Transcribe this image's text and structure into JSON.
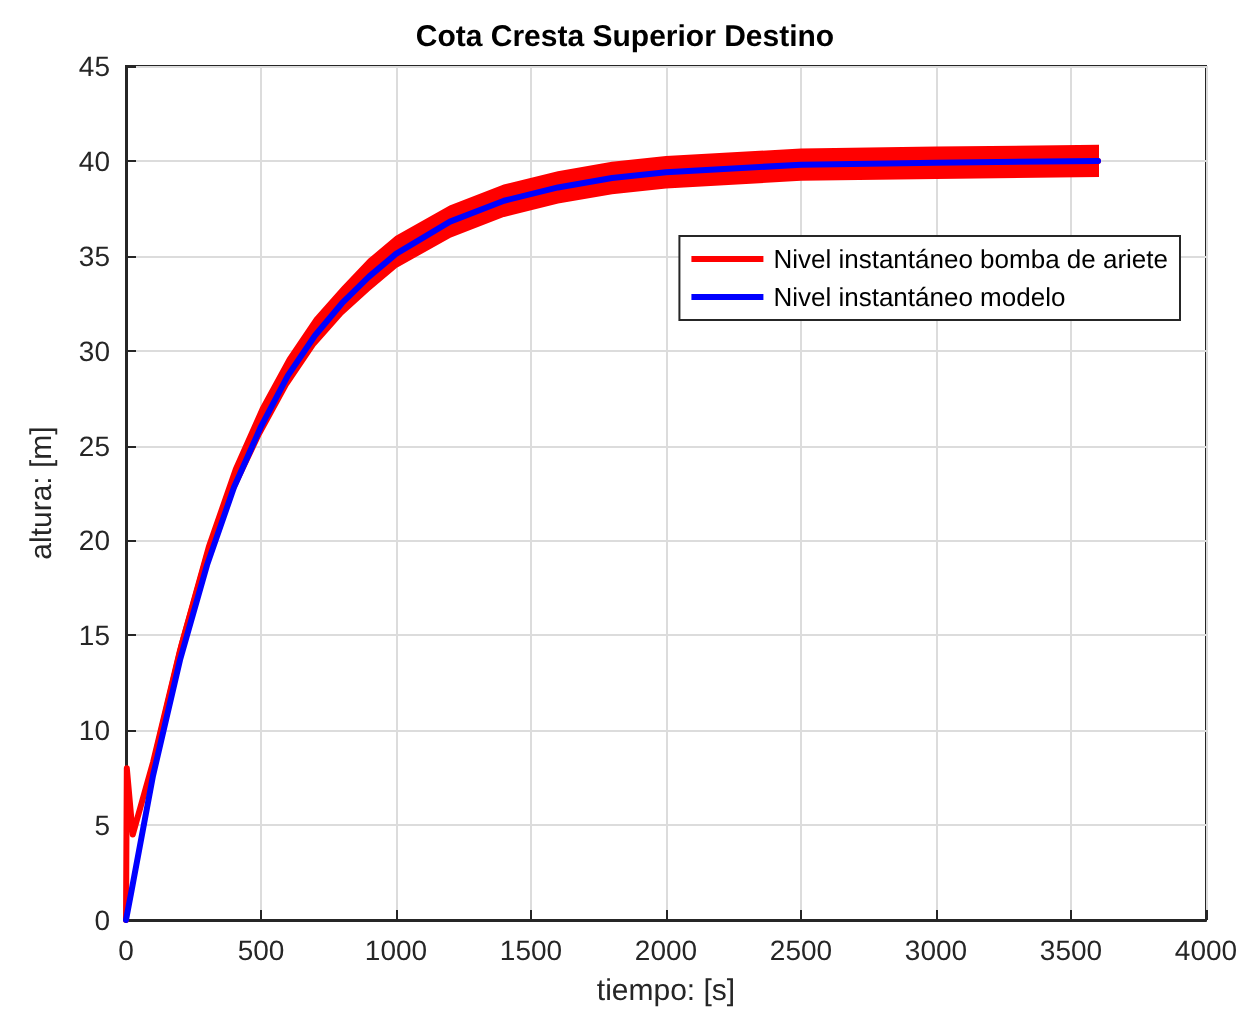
{
  "chart_data": {
    "type": "line",
    "title": "Cota Cresta Superior Destino",
    "xlabel": "tiempo: [s]",
    "ylabel": "altura: [m]",
    "xlim": [
      0,
      4000
    ],
    "xticks": [
      0,
      500,
      1000,
      1500,
      2000,
      2500,
      3000,
      3500,
      4000
    ],
    "ylim": [
      0,
      45
    ],
    "yticks": [
      0,
      5,
      10,
      15,
      20,
      25,
      30,
      35,
      40,
      45
    ],
    "grid": true,
    "legend": "right",
    "line_style": "solid",
    "marker": "none",
    "series": [
      {
        "name": "Nivel instantáneo bomba de ariete",
        "color": "#ff0000",
        "x": [
          0,
          3,
          25,
          100,
          200,
          300,
          400,
          500,
          600,
          700,
          800,
          900,
          1000,
          1200,
          1400,
          1600,
          1800,
          2000,
          2500,
          3000,
          3600
        ],
        "values": [
          0,
          8,
          4.5,
          8.3,
          14.2,
          19.2,
          23.2,
          26.3,
          28.9,
          31,
          32.6,
          34,
          35.2,
          36.8,
          37.9,
          38.6,
          39.1,
          39.4,
          39.8,
          39.9,
          40
        ],
        "lower": [
          null,
          null,
          null,
          8,
          13.8,
          18.7,
          22.6,
          25.6,
          28.2,
          30.3,
          31.9,
          33.2,
          34.4,
          36,
          37.1,
          37.8,
          38.3,
          38.6,
          39,
          39.1,
          39.2
        ],
        "upper": [
          null,
          null,
          null,
          8.6,
          14.6,
          19.7,
          23.8,
          27,
          29.6,
          31.7,
          33.3,
          34.8,
          36,
          37.6,
          38.7,
          39.4,
          39.9,
          40.2,
          40.6,
          40.7,
          40.8
        ]
      },
      {
        "name": "Nivel instantáneo modelo",
        "color": "#0000ff",
        "x": [
          0,
          20,
          100,
          200,
          300,
          400,
          500,
          600,
          700,
          800,
          900,
          1000,
          1200,
          1400,
          1600,
          1800,
          2000,
          2500,
          3000,
          3600
        ],
        "values": [
          0,
          1.5,
          7.6,
          13.7,
          18.7,
          22.8,
          26,
          28.7,
          30.8,
          32.5,
          33.9,
          35.1,
          36.8,
          37.9,
          38.6,
          39.1,
          39.4,
          39.8,
          39.9,
          40
        ]
      }
    ]
  }
}
